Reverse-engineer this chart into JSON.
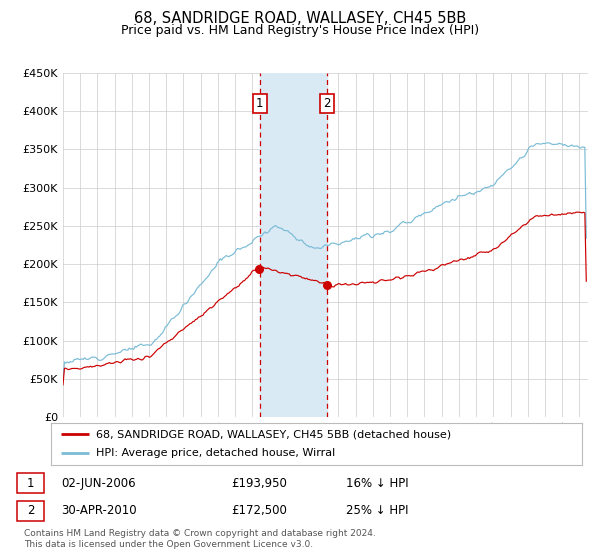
{
  "title": "68, SANDRIDGE ROAD, WALLASEY, CH45 5BB",
  "subtitle": "Price paid vs. HM Land Registry's House Price Index (HPI)",
  "legend_line1": "68, SANDRIDGE ROAD, WALLASEY, CH45 5BB (detached house)",
  "legend_line2": "HPI: Average price, detached house, Wirral",
  "transaction1_date": "02-JUN-2006",
  "transaction1_price": "£193,950",
  "transaction1_hpi": "16% ↓ HPI",
  "transaction2_date": "30-APR-2010",
  "transaction2_price": "£172,500",
  "transaction2_hpi": "25% ↓ HPI",
  "footnote": "Contains HM Land Registry data © Crown copyright and database right 2024.\nThis data is licensed under the Open Government Licence v3.0.",
  "hpi_color": "#7abcd6",
  "price_color": "#cc0000",
  "shading_color": "#daeaf5",
  "vline_color": "#cc0000",
  "ylim_min": 0,
  "ylim_max": 450000,
  "yticks": [
    0,
    50000,
    100000,
    150000,
    200000,
    250000,
    300000,
    350000,
    400000,
    450000
  ],
  "xlim_start": 1995,
  "xlim_end": 2025.5,
  "transaction1_year": 2006.42,
  "transaction2_year": 2010.33,
  "transaction1_price_val": 193950,
  "transaction2_price_val": 172500
}
